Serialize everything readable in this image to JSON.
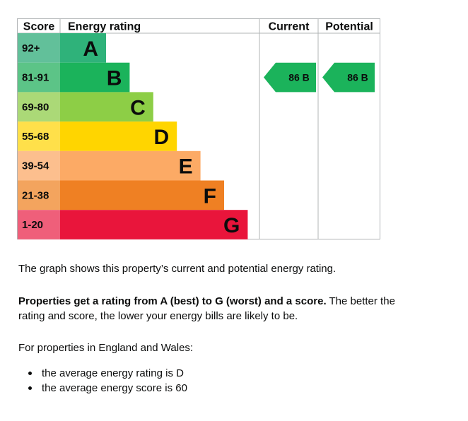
{
  "chart_data": {
    "type": "bar",
    "headers": {
      "score": "Score",
      "rating": "Energy rating",
      "current": "Current",
      "potential": "Potential"
    },
    "bands": [
      {
        "range": "92+",
        "letter": "A",
        "color": "#2fb27a",
        "rangeColor": "#62c09a"
      },
      {
        "range": "81-91",
        "letter": "B",
        "color": "#1bb35b",
        "rangeColor": "#5cc487"
      },
      {
        "range": "69-80",
        "letter": "C",
        "color": "#8dce46",
        "rangeColor": "#abd977"
      },
      {
        "range": "55-68",
        "letter": "D",
        "color": "#ffd500",
        "rangeColor": "#ffe04a"
      },
      {
        "range": "39-54",
        "letter": "E",
        "color": "#fcaa65",
        "rangeColor": "#fcbf8e"
      },
      {
        "range": "21-38",
        "letter": "F",
        "color": "#ef8023",
        "rangeColor": "#f3a45e"
      },
      {
        "range": "1-20",
        "letter": "G",
        "color": "#e9153b",
        "rangeColor": "#ef5f7a"
      }
    ],
    "current": {
      "score": 86,
      "band": "B",
      "label": "86  B",
      "color": "#1bb35b"
    },
    "potential": {
      "score": 86,
      "band": "B",
      "label": "86  B",
      "color": "#1bb35b"
    }
  },
  "description": {
    "p1": "The graph shows this property’s current and potential energy rating.",
    "p2_bold": "Properties get a rating from A (best) to G (worst) and a score.",
    "p2_rest": " The better the rating and score, the lower your energy bills are likely to be.",
    "p3": "For properties in England and Wales:",
    "bullets": [
      "the average energy rating is D",
      "the average energy score is 60"
    ]
  }
}
